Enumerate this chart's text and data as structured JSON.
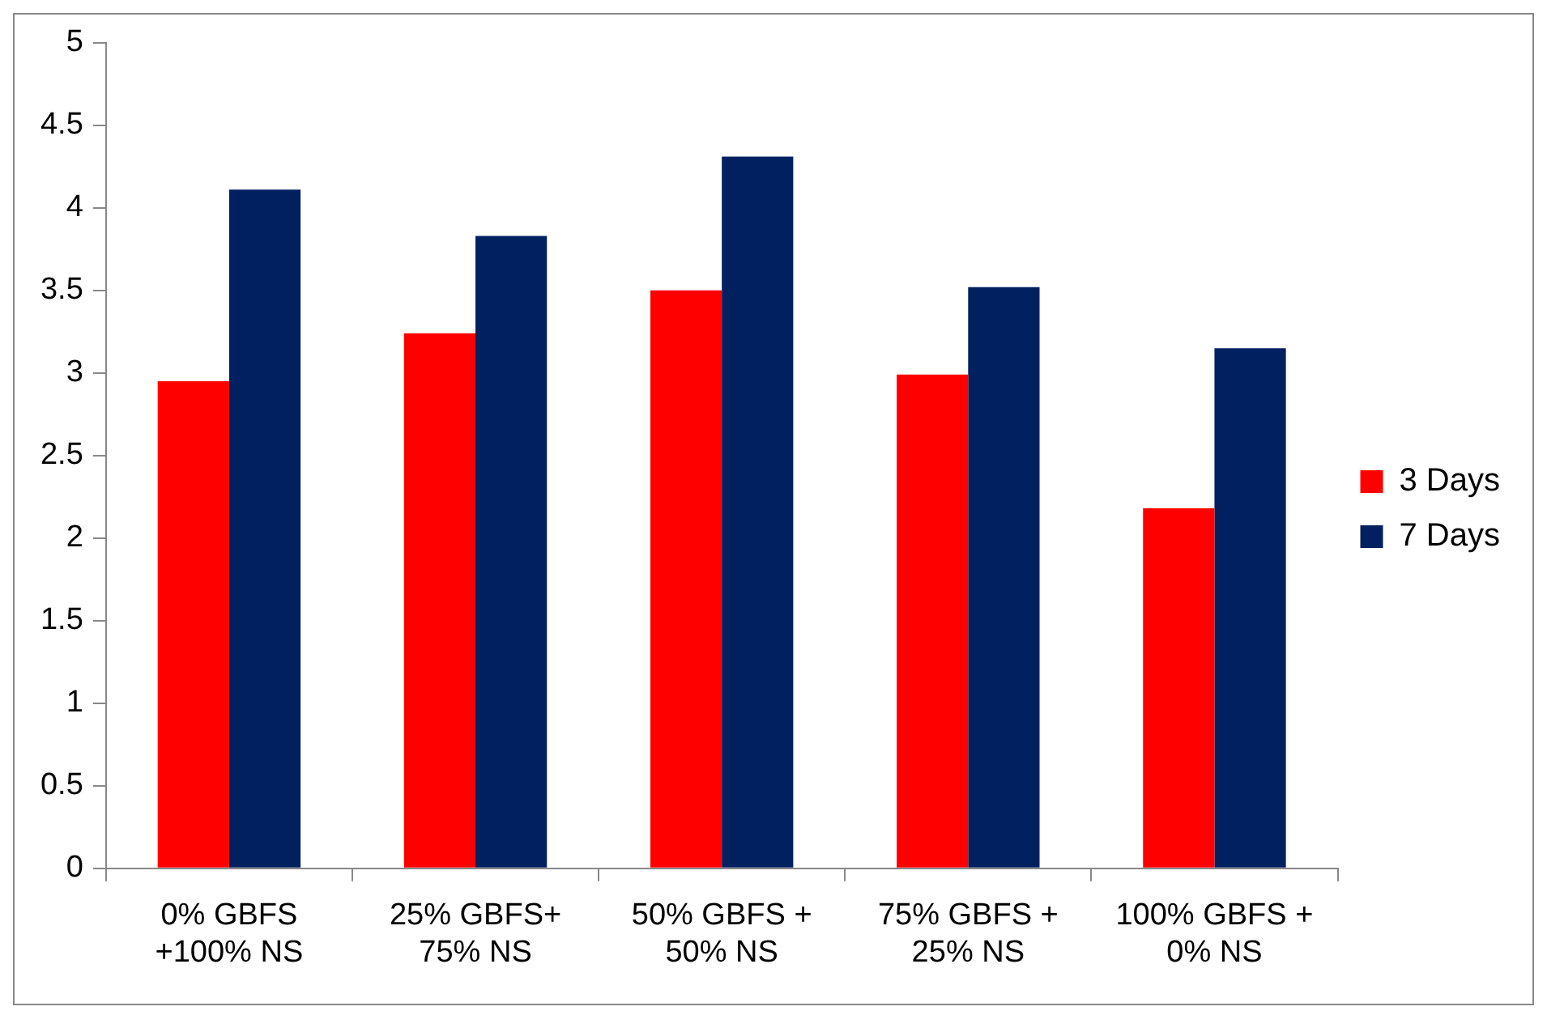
{
  "chart_data": {
    "type": "bar",
    "categories": [
      "0% GBFS\n+100% NS",
      "25% GBFS+\n75% NS",
      "50% GBFS +\n50% NS",
      "75% GBFS +\n25% NS",
      "100% GBFS +\n0% NS"
    ],
    "series": [
      {
        "name": "3 Days",
        "color": "#ff0000",
        "values": [
          2.95,
          3.24,
          3.5,
          2.99,
          2.18
        ]
      },
      {
        "name": "7 Days",
        "color": "#002060",
        "values": [
          4.11,
          3.83,
          4.31,
          3.52,
          3.15
        ]
      }
    ],
    "ylim": [
      0,
      5
    ],
    "yticks": [
      0,
      0.5,
      1,
      1.5,
      2,
      2.5,
      3,
      3.5,
      4,
      4.5,
      5
    ],
    "grid": false,
    "legend": "right"
  }
}
